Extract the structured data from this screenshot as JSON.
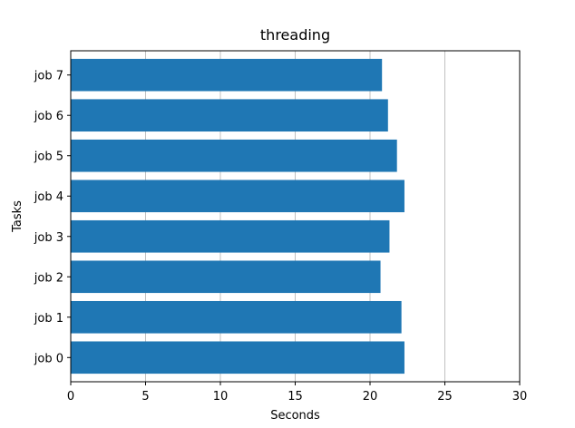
{
  "chart_data": {
    "type": "bar",
    "orientation": "horizontal",
    "title": "threading",
    "xlabel": "Seconds",
    "ylabel": "Tasks",
    "categories": [
      "job 0",
      "job 1",
      "job 2",
      "job 3",
      "job 4",
      "job 5",
      "job 6",
      "job 7"
    ],
    "values": [
      22.3,
      22.1,
      20.7,
      21.3,
      22.3,
      21.8,
      21.2,
      20.8
    ],
    "xlim": [
      0,
      30
    ],
    "xticks": [
      0,
      5,
      10,
      15,
      20,
      25,
      30
    ],
    "grid": "x",
    "colors": {
      "bar": "#1f77b4",
      "grid": "#b0b0b0",
      "axis": "#000000"
    }
  }
}
